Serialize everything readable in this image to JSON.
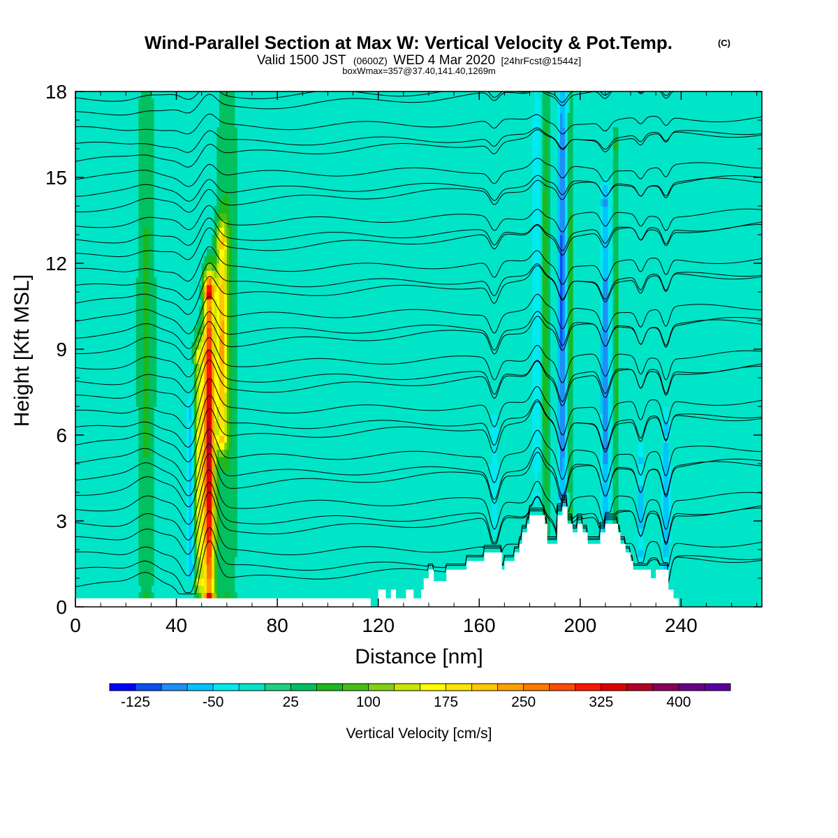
{
  "title": {
    "main": "Wind-Parallel Section at Max W: Vertical Velocity & Pot.Temp.",
    "main_mark": "(C)",
    "valid_a": "Valid 1500 JST",
    "valid_b": "(0600Z)",
    "valid_c": "WED 4 Mar 2020",
    "valid_d": "[24hrFcst@1544z]",
    "box": "boxWmax=357@37.40,141.40,1269m"
  },
  "chart_data": {
    "type": "heatmap",
    "xlabel": "Distance [nm]",
    "ylabel": "Height [Kft MSL]",
    "xlim": [
      0,
      272
    ],
    "ylim": [
      0,
      18
    ],
    "x_ticks": [
      "0",
      "40",
      "80",
      "120",
      "160",
      "200",
      "240"
    ],
    "x_tick_values": [
      0,
      40,
      80,
      120,
      160,
      200,
      240
    ],
    "y_ticks": [
      "0",
      "3",
      "6",
      "9",
      "12",
      "15",
      "18"
    ],
    "y_tick_values": [
      0,
      3,
      6,
      9,
      12,
      15,
      18
    ],
    "colorbar": {
      "label": "Vertical Velocity [cm/s]",
      "tick_labels": [
        "-125",
        "-50",
        "25",
        "100",
        "175",
        "250",
        "325",
        "400"
      ],
      "min": -150,
      "max": 450,
      "colors": [
        "#0000ff",
        "#0a50f0",
        "#1e8ff5",
        "#00c3ff",
        "#00eaf0",
        "#00e5c8",
        "#1cd07f",
        "#00c060",
        "#1cb81c",
        "#45c012",
        "#80d014",
        "#c8e600",
        "#ffff00",
        "#ffe600",
        "#ffc800",
        "#ffa000",
        "#ff7800",
        "#ff4b00",
        "#ff1400",
        "#e00000",
        "#b40028",
        "#880058",
        "#6a0088",
        "#5a00a0"
      ]
    },
    "background_level_cm_s": 0,
    "updraft_plumes": [
      {
        "x": 53,
        "half_width_nm": 2.2,
        "z_bottom": 0.5,
        "z_top": 10.8,
        "peak_cm_s": 357
      },
      {
        "x": 49,
        "half_width_nm": 2.0,
        "z_bottom": 1.0,
        "z_top": 8.5,
        "peak_cm_s": 180
      },
      {
        "x": 58,
        "half_width_nm": 2.0,
        "z_bottom": 6.0,
        "z_top": 12.5,
        "peak_cm_s": 190
      },
      {
        "x": 28,
        "half_width_nm": 4.0,
        "z_bottom": 0.5,
        "z_top": 18,
        "peak_cm_s": 55
      },
      {
        "x": 60,
        "half_width_nm": 5.0,
        "z_bottom": 0.5,
        "z_top": 18,
        "peak_cm_s": 55
      },
      {
        "x": 186,
        "half_width_nm": 1.8,
        "z_bottom": 3.0,
        "z_top": 18,
        "peak_cm_s": 80
      },
      {
        "x": 196,
        "half_width_nm": 1.5,
        "z_bottom": 3.5,
        "z_top": 18,
        "peak_cm_s": 65
      },
      {
        "x": 214,
        "half_width_nm": 1.5,
        "z_bottom": 2.5,
        "z_top": 16,
        "peak_cm_s": 60
      }
    ],
    "downdraft_plumes": [
      {
        "x": 46,
        "half_width_nm": 1.8,
        "z_bottom": 1.5,
        "z_top": 6.5,
        "peak_cm_s": -90
      },
      {
        "x": 193,
        "half_width_nm": 2.0,
        "z_bottom": 4.0,
        "z_top": 18,
        "peak_cm_s": -110
      },
      {
        "x": 183,
        "half_width_nm": 2.5,
        "z_bottom": 4.0,
        "z_top": 18,
        "peak_cm_s": -50
      },
      {
        "x": 210,
        "half_width_nm": 2.0,
        "z_bottom": 2.5,
        "z_top": 14,
        "peak_cm_s": -90
      },
      {
        "x": 234,
        "half_width_nm": 1.5,
        "z_bottom": 1.5,
        "z_top": 6,
        "peak_cm_s": -80
      },
      {
        "x": 224,
        "half_width_nm": 1.5,
        "z_bottom": 2.0,
        "z_top": 5,
        "peak_cm_s": -60
      },
      {
        "x": 166,
        "half_width_nm": 2.0,
        "z_bottom": 3.0,
        "z_top": 6,
        "peak_cm_s": -45
      }
    ],
    "terrain_kft": [
      [
        0,
        0.3
      ],
      [
        117,
        0.3
      ],
      [
        117,
        0
      ],
      [
        120,
        0
      ],
      [
        120,
        0.6
      ],
      [
        123,
        0.6
      ],
      [
        123,
        0.3
      ],
      [
        125,
        0.3
      ],
      [
        125,
        0.6
      ],
      [
        127,
        0.6
      ],
      [
        127,
        0.3
      ],
      [
        131,
        0.3
      ],
      [
        131,
        0.6
      ],
      [
        134,
        0.6
      ],
      [
        134,
        0.3
      ],
      [
        137,
        0.3
      ],
      [
        137,
        0.6
      ],
      [
        138,
        0.6
      ],
      [
        138,
        1.0
      ],
      [
        140,
        1.0
      ],
      [
        140,
        1.3
      ],
      [
        142,
        1.3
      ],
      [
        142,
        0.9
      ],
      [
        147,
        0.9
      ],
      [
        147,
        1.3
      ],
      [
        155,
        1.3
      ],
      [
        155,
        1.6
      ],
      [
        162,
        1.6
      ],
      [
        162,
        1.9
      ],
      [
        169,
        1.9
      ],
      [
        169,
        1.3
      ],
      [
        170,
        1.3
      ],
      [
        170,
        1.6
      ],
      [
        174,
        1.6
      ],
      [
        174,
        1.9
      ],
      [
        176,
        1.9
      ],
      [
        176,
        2.2
      ],
      [
        177,
        2.2
      ],
      [
        177,
        2.6
      ],
      [
        179,
        2.6
      ],
      [
        179,
        2.9
      ],
      [
        180,
        2.9
      ],
      [
        180,
        3.2
      ],
      [
        186,
        3.2
      ],
      [
        186,
        2.9
      ],
      [
        187,
        2.9
      ],
      [
        187,
        2.2
      ],
      [
        191,
        2.2
      ],
      [
        191,
        3.2
      ],
      [
        193,
        3.2
      ],
      [
        193,
        3.5
      ],
      [
        195,
        3.5
      ],
      [
        195,
        2.9
      ],
      [
        197,
        2.9
      ],
      [
        197,
        2.6
      ],
      [
        199,
        2.6
      ],
      [
        199,
        2.9
      ],
      [
        201,
        2.9
      ],
      [
        201,
        2.6
      ],
      [
        203,
        2.6
      ],
      [
        203,
        2.2
      ],
      [
        208,
        2.2
      ],
      [
        208,
        2.6
      ],
      [
        210,
        2.6
      ],
      [
        210,
        2.9
      ],
      [
        215,
        2.9
      ],
      [
        215,
        2.6
      ],
      [
        216,
        2.6
      ],
      [
        216,
        2.2
      ],
      [
        218,
        2.2
      ],
      [
        218,
        1.9
      ],
      [
        220,
        1.9
      ],
      [
        220,
        1.6
      ],
      [
        221,
        1.6
      ],
      [
        221,
        1.3
      ],
      [
        228,
        1.3
      ],
      [
        228,
        1.0
      ],
      [
        230,
        1.0
      ],
      [
        230,
        1.3
      ],
      [
        235,
        1.3
      ],
      [
        235,
        0.6
      ],
      [
        237,
        0.6
      ],
      [
        237,
        0.3
      ],
      [
        239,
        0.3
      ],
      [
        239,
        0
      ],
      [
        272,
        0
      ]
    ],
    "isentropes": {
      "lowest_kft": 0.7,
      "spacing_kft": 0.55,
      "count": 33,
      "wave_perturbations": [
        {
          "x": 45,
          "width_nm": 4,
          "amplitude_kft": -0.9
        },
        {
          "x": 53,
          "width_nm": 4,
          "amplitude_kft": 1.5
        },
        {
          "x": 28,
          "width_nm": 6,
          "amplitude_kft": 0.4
        },
        {
          "x": 166,
          "width_nm": 2.5,
          "amplitude_kft": -1.2
        },
        {
          "x": 183,
          "width_nm": 3,
          "amplitude_kft": 0.9
        },
        {
          "x": 193,
          "width_nm": 2.5,
          "amplitude_kft": -1.4
        },
        {
          "x": 210,
          "width_nm": 2.5,
          "amplitude_kft": -1.3
        },
        {
          "x": 224,
          "width_nm": 2,
          "amplitude_kft": -1.0
        },
        {
          "x": 234,
          "width_nm": 2,
          "amplitude_kft": -1.2
        }
      ]
    }
  }
}
